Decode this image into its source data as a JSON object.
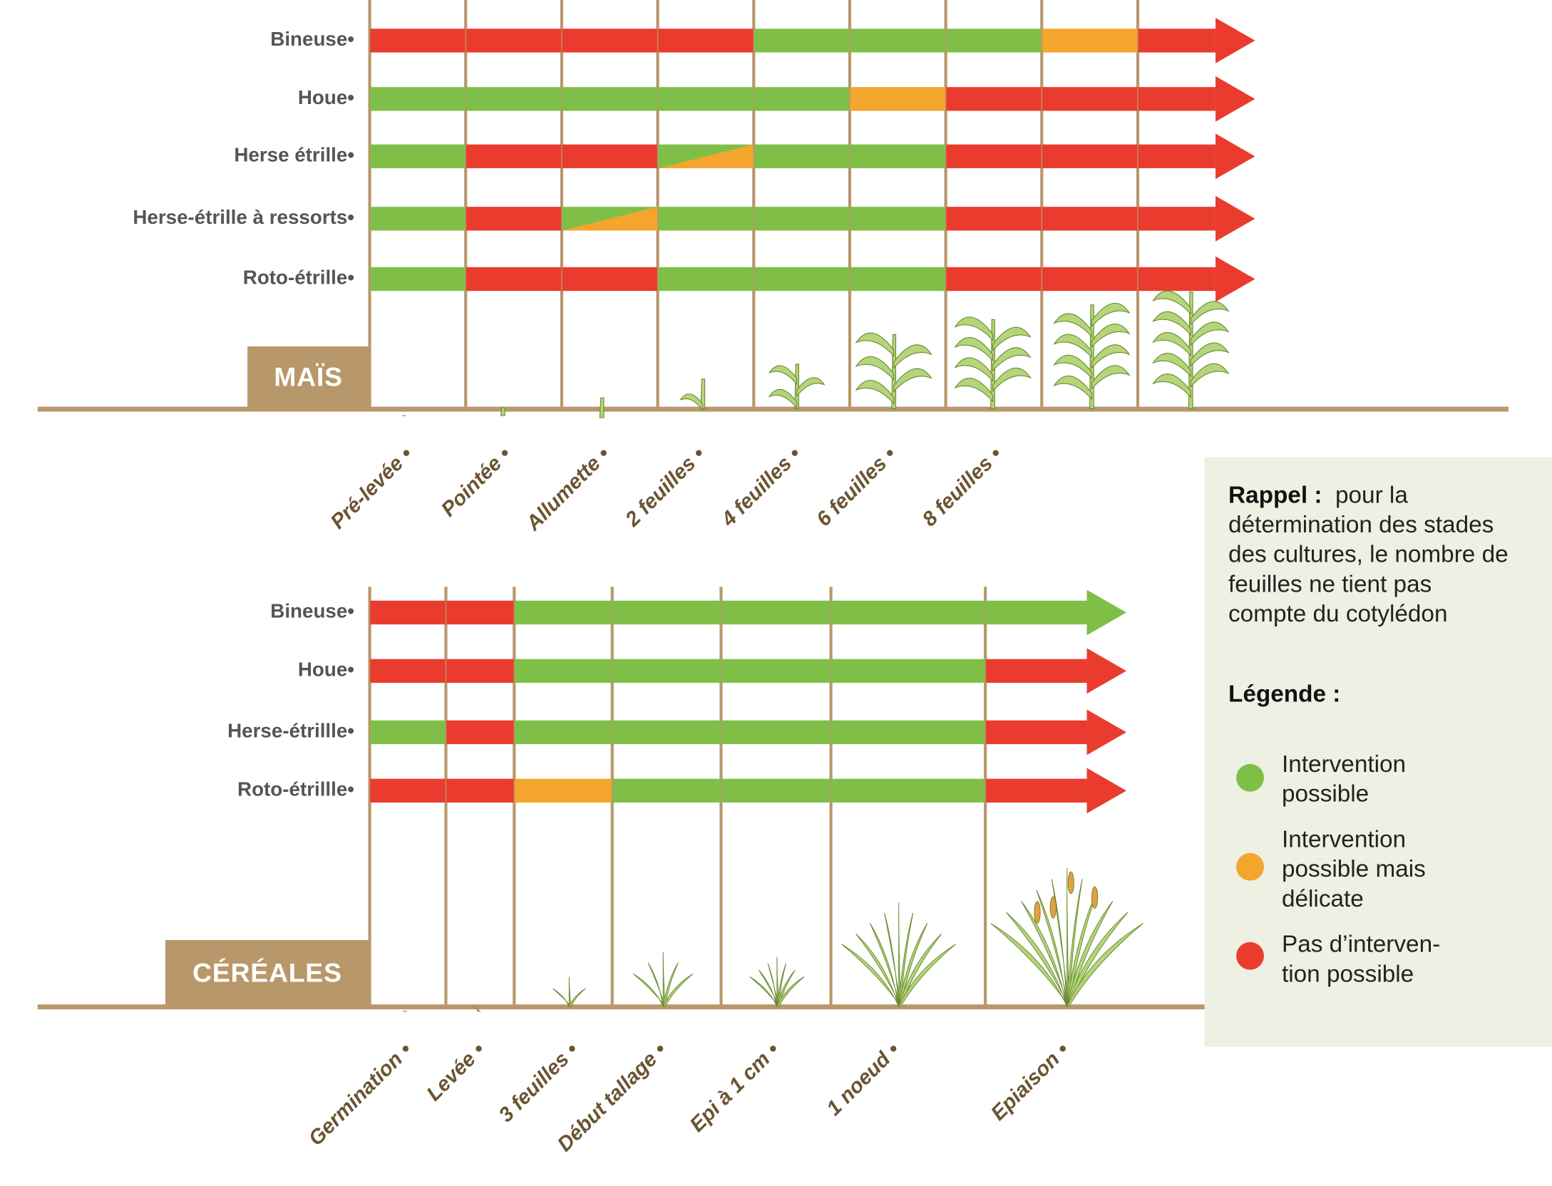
{
  "colors": {
    "R": "#e93c2f",
    "G": "#7fbf47",
    "O": "#f3a52d",
    "brown": "#b8976a"
  },
  "mais": {
    "label": "MAÏS",
    "rows": [
      {
        "name": "Bineuse•",
        "segments": [
          "R",
          "R",
          "R",
          "R",
          "G",
          "G",
          "G",
          "O",
          "R"
        ]
      },
      {
        "name": "Houe•",
        "segments": [
          "G",
          "G",
          "G",
          "G",
          "G",
          "O",
          "R",
          "R",
          "R"
        ]
      },
      {
        "name": "Herse étrille•",
        "segments": [
          "G",
          "R",
          "R",
          "GO",
          "G",
          "G",
          "R",
          "R",
          "R"
        ]
      },
      {
        "name": "Herse-étrille à ressorts•",
        "segments": [
          "G",
          "R",
          "GO",
          "G",
          "G",
          "G",
          "R",
          "R",
          "R"
        ]
      },
      {
        "name": "Roto-étrille•",
        "segments": [
          "G",
          "R",
          "R",
          "G",
          "G",
          "G",
          "R",
          "R",
          "R"
        ]
      }
    ],
    "stages": [
      "Pré-levée •",
      "Pointée •",
      "Allumette •",
      "2 feuilles •",
      "4 feuilles •",
      "6 feuilles •",
      "8 feuilles •"
    ]
  },
  "cereales": {
    "label": "CÉRÉALES",
    "rows": [
      {
        "name": "Bineuse•",
        "segments": [
          "R",
          "R",
          "G",
          "G",
          "G",
          "G",
          "G"
        ]
      },
      {
        "name": "Houe•",
        "segments": [
          "R",
          "R",
          "G",
          "G",
          "G",
          "G",
          "R"
        ]
      },
      {
        "name": "Herse-étrillle•",
        "segments": [
          "G",
          "R",
          "G",
          "G",
          "G",
          "G",
          "R"
        ]
      },
      {
        "name": "Roto-étrillle•",
        "segments": [
          "R",
          "R",
          "O",
          "G",
          "G",
          "G",
          "R"
        ]
      }
    ],
    "stages": [
      "Germination •",
      "Levée •",
      "3 feuilles •",
      "Début tallage •",
      "Epi à 1 cm •",
      "1 noeud •",
      "Epiaison •"
    ]
  },
  "legend": {
    "rappel_title": "Rappel :",
    "rappel_text": "pour la détermination des stades des cultures, le nombre de feuilles ne tient pas compte du cotylédon",
    "title": "Légende :",
    "items": [
      {
        "label": "Intervention possible",
        "color": "#7fbf47"
      },
      {
        "label": "Intervention possible mais délicate",
        "color": "#f3a52d"
      },
      {
        "label": "Pas d’interven-tion possible",
        "color": "#e93c2f"
      }
    ]
  }
}
